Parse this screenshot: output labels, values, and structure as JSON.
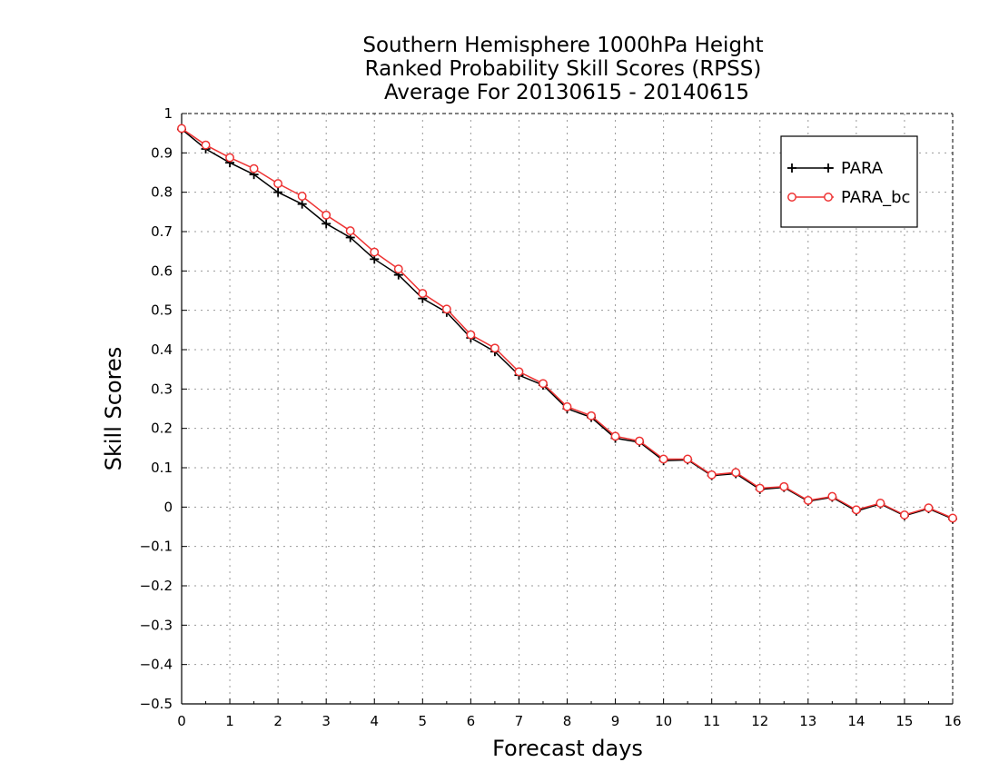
{
  "chart_data": {
    "type": "line",
    "title": [
      "Southern Hemisphere 1000hPa Height",
      "Ranked Probability Skill Scores (RPSS)",
      "Average For 20130615 - 20140615"
    ],
    "xlabel": "Forecast days",
    "ylabel": "Skill Scores",
    "xlim": [
      0,
      16
    ],
    "ylim": [
      -0.5,
      1
    ],
    "xticks": [
      0,
      1,
      2,
      3,
      4,
      5,
      6,
      7,
      8,
      9,
      10,
      11,
      12,
      13,
      14,
      15,
      16
    ],
    "yticks": [
      -0.5,
      -0.4,
      -0.3,
      -0.2,
      -0.1,
      0,
      0.1,
      0.2,
      0.3,
      0.4,
      0.5,
      0.6,
      0.7,
      0.8,
      0.9,
      1
    ],
    "ytick_labels": [
      "−0.5",
      "−0.4",
      "−0.3",
      "−0.2",
      "−0.1",
      "0",
      "0.1",
      "0.2",
      "0.3",
      "0.4",
      "0.5",
      "0.6",
      "0.7",
      "0.8",
      "0.9",
      "1"
    ],
    "grid": true,
    "legend_position": "top-right",
    "x": [
      0,
      0.5,
      1,
      1.5,
      2,
      2.5,
      3,
      3.5,
      4,
      4.5,
      5,
      5.5,
      6,
      6.5,
      7,
      7.5,
      8,
      8.5,
      9,
      9.5,
      10,
      10.5,
      11,
      11.5,
      12,
      12.5,
      13,
      13.5,
      14,
      14.5,
      15,
      15.5,
      16
    ],
    "series": [
      {
        "name": "PARA",
        "color": "#000000",
        "marker": "plus",
        "values": [
          0.96,
          0.91,
          0.875,
          0.845,
          0.8,
          0.77,
          0.72,
          0.685,
          0.63,
          0.59,
          0.53,
          0.495,
          0.43,
          0.395,
          0.335,
          0.31,
          0.25,
          0.228,
          0.175,
          0.165,
          0.118,
          0.12,
          0.08,
          0.085,
          0.045,
          0.05,
          0.015,
          0.025,
          -0.01,
          0.008,
          -0.022,
          -0.004,
          -0.03
        ]
      },
      {
        "name": "PARA_bc",
        "color": "#ee3333",
        "marker": "circle",
        "values": [
          0.962,
          0.92,
          0.888,
          0.86,
          0.822,
          0.79,
          0.742,
          0.702,
          0.648,
          0.605,
          0.543,
          0.503,
          0.438,
          0.404,
          0.344,
          0.314,
          0.255,
          0.232,
          0.18,
          0.168,
          0.122,
          0.122,
          0.082,
          0.088,
          0.048,
          0.052,
          0.017,
          0.027,
          -0.007,
          0.01,
          -0.02,
          -0.002,
          -0.028
        ]
      }
    ]
  }
}
